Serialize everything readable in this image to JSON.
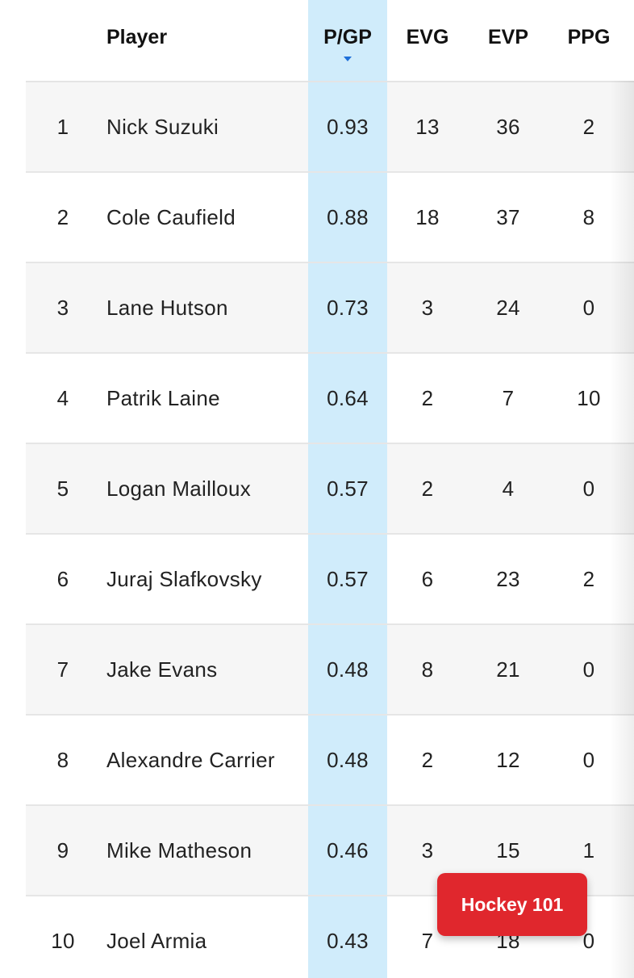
{
  "table": {
    "headers": {
      "player": "Player",
      "pgp": "P/GP",
      "evg": "EVG",
      "evp": "EVP",
      "ppg": "PPG"
    },
    "sort": {
      "column": "P/GP",
      "direction": "descending"
    },
    "rows": [
      {
        "rank": "1",
        "player": "Nick Suzuki",
        "pgp": "0.93",
        "evg": "13",
        "evp": "36",
        "ppg": "2"
      },
      {
        "rank": "2",
        "player": "Cole Caufield",
        "pgp": "0.88",
        "evg": "18",
        "evp": "37",
        "ppg": "8"
      },
      {
        "rank": "3",
        "player": "Lane Hutson",
        "pgp": "0.73",
        "evg": "3",
        "evp": "24",
        "ppg": "0"
      },
      {
        "rank": "4",
        "player": "Patrik Laine",
        "pgp": "0.64",
        "evg": "2",
        "evp": "7",
        "ppg": "10"
      },
      {
        "rank": "5",
        "player": "Logan Mailloux",
        "pgp": "0.57",
        "evg": "2",
        "evp": "4",
        "ppg": "0"
      },
      {
        "rank": "6",
        "player": "Juraj Slafkovsky",
        "pgp": "0.57",
        "evg": "6",
        "evp": "23",
        "ppg": "2"
      },
      {
        "rank": "7",
        "player": "Jake Evans",
        "pgp": "0.48",
        "evg": "8",
        "evp": "21",
        "ppg": "0"
      },
      {
        "rank": "8",
        "player": "Alexandre Carrier",
        "pgp": "0.48",
        "evg": "2",
        "evp": "12",
        "ppg": "0"
      },
      {
        "rank": "9",
        "player": "Mike Matheson",
        "pgp": "0.46",
        "evg": "3",
        "evp": "15",
        "ppg": "1"
      },
      {
        "rank": "10",
        "player": "Joel Armia",
        "pgp": "0.43",
        "evg": "7",
        "evp": "18",
        "ppg": "0"
      }
    ]
  },
  "badge": {
    "label": "Hockey 101"
  },
  "colors": {
    "sorted_column_bg": "#d0ecfb",
    "sort_caret": "#1e6fd9",
    "badge_bg": "#e0272d"
  }
}
